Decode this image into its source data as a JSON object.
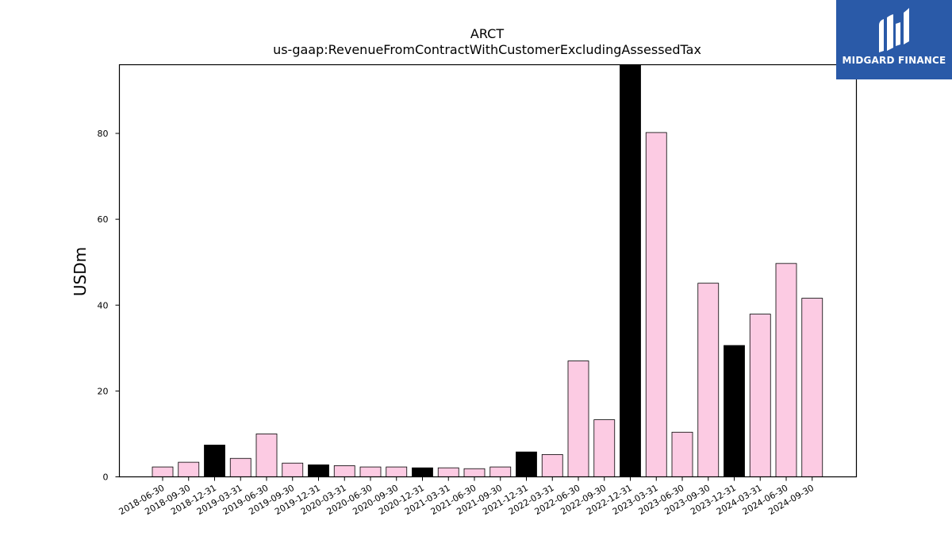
{
  "logo": {
    "text": "MIDGARD FINANCE"
  },
  "chart_data": {
    "type": "bar",
    "title": "ARCT",
    "subtitle": "us-gaap:RevenueFromContractWithCustomerExcludingAssessedTax",
    "xlabel": "",
    "ylabel": "USDm",
    "ylim": [
      0,
      96
    ],
    "yticks": [
      0,
      20,
      40,
      60,
      80
    ],
    "grid": false,
    "categories": [
      "2018-06-30",
      "2018-09-30",
      "2018-12-31",
      "2019-03-31",
      "2019-06-30",
      "2019-09-30",
      "2019-12-31",
      "2020-03-31",
      "2020-06-30",
      "2020-09-30",
      "2020-12-31",
      "2021-03-31",
      "2021-06-30",
      "2021-09-30",
      "2021-12-31",
      "2022-03-31",
      "2022-06-30",
      "2022-09-30",
      "2022-12-31",
      "2023-03-31",
      "2023-06-30",
      "2023-09-30",
      "2023-12-31",
      "2024-03-31",
      "2024-06-30",
      "2024-09-30"
    ],
    "values": [
      2.3,
      3.4,
      7.4,
      4.3,
      10.0,
      3.2,
      2.8,
      2.6,
      2.3,
      2.3,
      2.1,
      2.1,
      1.9,
      2.3,
      5.8,
      5.2,
      27.0,
      13.3,
      96.0,
      80.2,
      10.4,
      45.1,
      30.6,
      37.9,
      49.7,
      41.6
    ],
    "colors": {
      "quarter": "#fccbe3",
      "year_end": "#000000",
      "edge": "#000000"
    }
  }
}
